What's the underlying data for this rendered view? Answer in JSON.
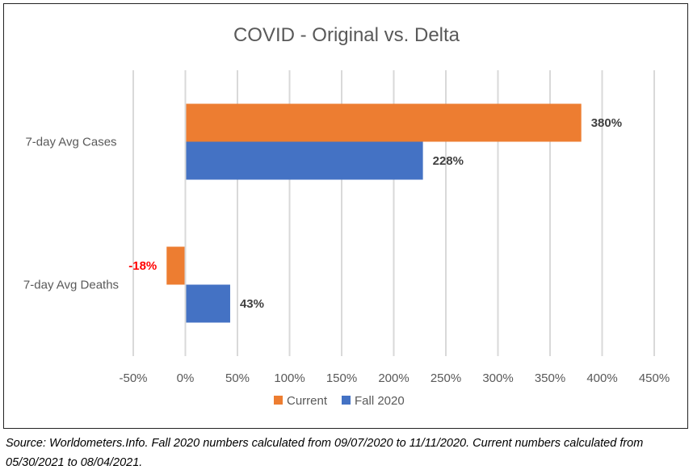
{
  "chart_data": {
    "type": "bar",
    "orientation": "horizontal",
    "title": "COVID - Original vs. Delta",
    "categories": [
      "7-day Avg Cases",
      "7-day Avg Deaths"
    ],
    "series": [
      {
        "name": "Current",
        "color": "#ED7D31",
        "values": [
          3.8,
          -0.18
        ],
        "labels": [
          "380%",
          "-18%"
        ]
      },
      {
        "name": "Fall 2020",
        "color": "#4472C4",
        "values": [
          2.28,
          0.43
        ],
        "labels": [
          "228%",
          "43%"
        ]
      }
    ],
    "x_ticks": [
      -0.5,
      0,
      0.5,
      1,
      1.5,
      2,
      2.5,
      3,
      3.5,
      4,
      4.5
    ],
    "x_tick_labels": [
      "-50%",
      "0%",
      "50%",
      "100%",
      "150%",
      "200%",
      "250%",
      "300%",
      "350%",
      "400%",
      "450%"
    ],
    "xlim": [
      -0.5,
      4.5
    ],
    "grid": true,
    "legend_position": "bottom",
    "negative_label_color": "#FF0000",
    "label_color": "#404040"
  },
  "source_note": "Source:  Worldometers.Info.  Fall 2020 numbers calculated from 09/07/2020 to 11/11/2020.  Current numbers calculated from 05/30/2021 to 08/04/2021."
}
